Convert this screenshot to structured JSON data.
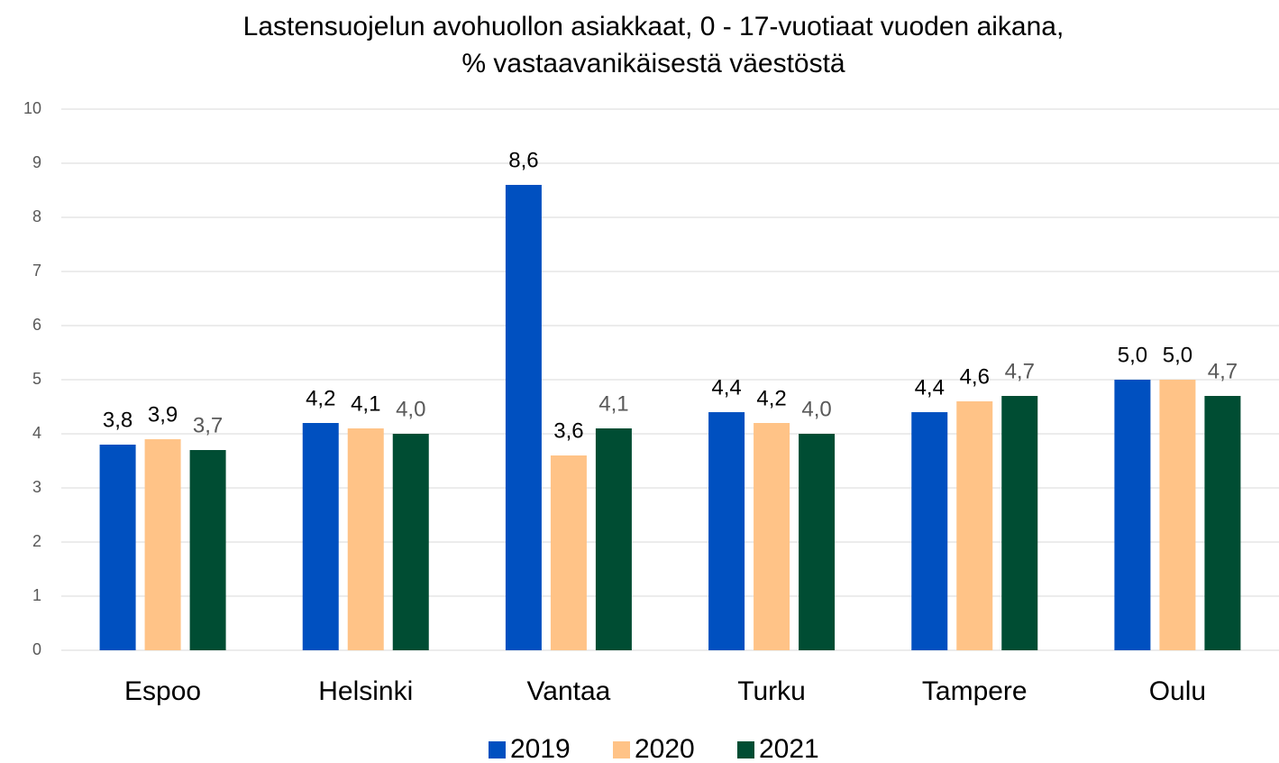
{
  "chart_data": {
    "type": "bar",
    "title": [
      "Lastensuojelun avohuollon asiakkaat, 0 - 17-vuotiaat vuoden aikana,",
      "% vastaavanikäisestä väestöstä"
    ],
    "categories": [
      "Espoo",
      "Helsinki",
      "Vantaa",
      "Turku",
      "Tampere",
      "Oulu"
    ],
    "series": [
      {
        "name": "2019",
        "color": "#0050c0",
        "label_color": "#000000",
        "values": [
          3.8,
          4.2,
          8.6,
          4.4,
          4.4,
          5.0
        ],
        "value_labels": [
          "3,8",
          "4,2",
          "8,6",
          "4,4",
          "4,4",
          "5,0"
        ]
      },
      {
        "name": "2020",
        "color": "#ffc387",
        "label_color": "#000000",
        "values": [
          3.9,
          4.1,
          3.6,
          4.2,
          4.6,
          5.0
        ],
        "value_labels": [
          "3,9",
          "4,1",
          "3,6",
          "4,2",
          "4,6",
          "5,0"
        ]
      },
      {
        "name": "2021",
        "color": "#004d33",
        "label_color": "#595959",
        "values": [
          3.7,
          4.0,
          4.1,
          4.0,
          4.7,
          4.7
        ],
        "value_labels": [
          "3,7",
          "4,0",
          "4,1",
          "4,0",
          "4,7",
          "4,7"
        ]
      }
    ],
    "ylim": [
      0,
      10
    ],
    "yticks": [
      0,
      1,
      2,
      3,
      4,
      5,
      6,
      7,
      8,
      9,
      10
    ],
    "grid": true,
    "legend": "bottom"
  }
}
